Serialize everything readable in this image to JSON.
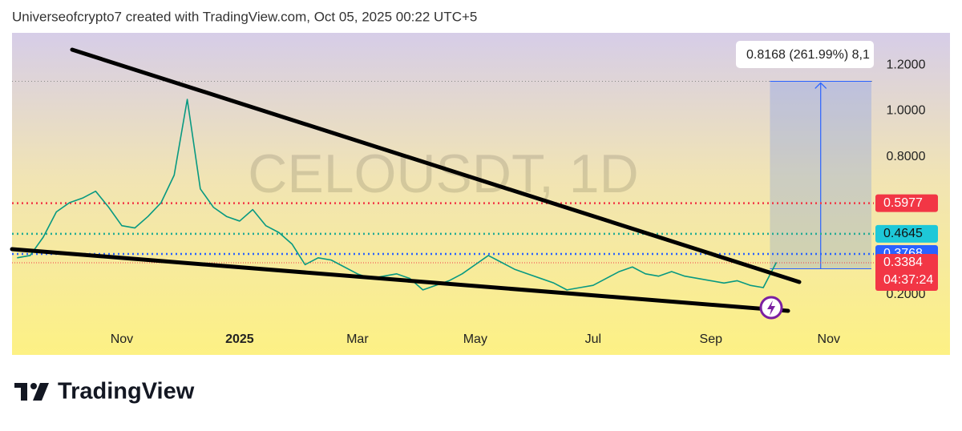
{
  "header": {
    "text": "Universeofcrypto7 created with TradingView.com, Oct 05, 2025 00:22 UTC+5"
  },
  "logo": {
    "text": "TradingView"
  },
  "chart_data": {
    "type": "line",
    "watermark": "CELOUSDT, 1D",
    "categories": [
      null,
      null,
      null,
      null,
      null,
      null,
      null,
      null,
      "Nov",
      null,
      null,
      null,
      null,
      null,
      null,
      null,
      null,
      "2025",
      null,
      null,
      null,
      null,
      null,
      null,
      null,
      null,
      "Mar",
      null,
      null,
      null,
      null,
      null,
      null,
      null,
      null,
      "May",
      null,
      null,
      null,
      null,
      null,
      null,
      null,
      null,
      "Jul",
      null,
      null,
      null,
      null,
      null,
      null,
      null,
      null,
      "Sep",
      null,
      null,
      null,
      null,
      null,
      null,
      null,
      null,
      "Nov"
    ],
    "values": [
      0.36,
      0.37,
      0.45,
      0.56,
      0.6,
      0.62,
      0.65,
      0.58,
      0.5,
      0.49,
      0.54,
      0.6,
      0.72,
      1.05,
      0.66,
      0.58,
      0.54,
      0.52,
      0.57,
      0.5,
      0.47,
      0.42,
      0.33,
      0.36,
      0.35,
      0.32,
      0.29,
      0.27,
      0.28,
      0.29,
      0.27,
      0.22,
      0.24,
      0.26,
      0.29,
      0.33,
      0.37,
      0.34,
      0.31,
      0.29,
      0.27,
      0.25,
      0.22,
      0.23,
      0.24,
      0.27,
      0.3,
      0.32,
      0.29,
      0.28,
      0.3,
      0.28,
      0.27,
      0.26,
      0.25,
      0.26,
      0.24,
      0.23,
      0.34,
      null,
      null,
      null,
      null
    ],
    "color": "#089981",
    "ylim": [
      0.08,
      1.34
    ],
    "yticks": [
      {
        "value": 0.2,
        "label": "0.2000"
      },
      {
        "value": 0.8,
        "label": "0.8000"
      },
      {
        "value": 1.0,
        "label": "1.0000"
      },
      {
        "value": 1.2,
        "label": "1.2000"
      }
    ],
    "levels": [
      {
        "value": 0.5977,
        "color": "#f23645"
      },
      {
        "value": 0.4645,
        "color": "#22ab94"
      },
      {
        "value": 0.3768,
        "color": "#2962ff"
      },
      {
        "value": 0.3384,
        "color": "#f23645",
        "countdown": "04:37:24"
      }
    ],
    "measure": {
      "label": "0.8168 (261.99%) 8,1",
      "low": 0.3122,
      "high": 1.129,
      "color": "#2962ff"
    }
  }
}
